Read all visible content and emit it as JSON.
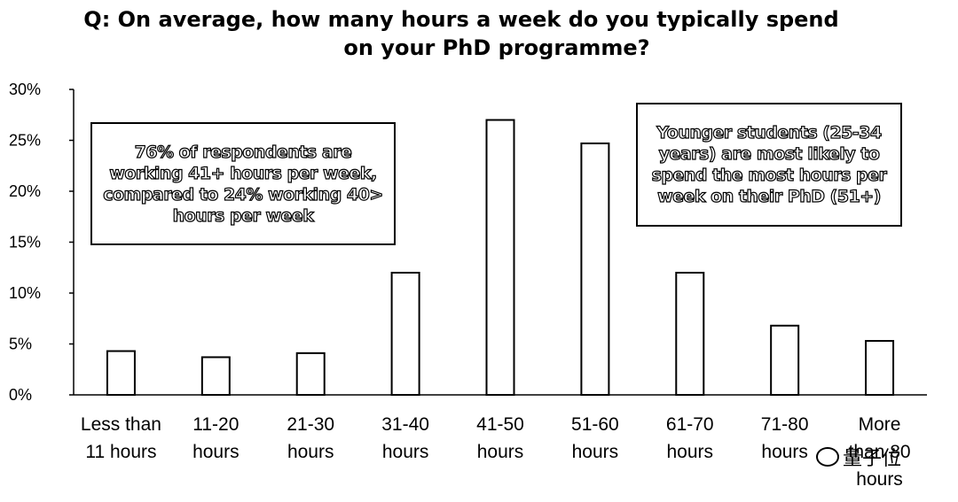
{
  "chart_data": {
    "type": "bar",
    "title": "Q: On average, how many hours a week do you typically spend on your PhD programme?",
    "title_lines": [
      "Q: On average, how many hours a week do you typically spend",
      "on your PhD programme?"
    ],
    "categories": [
      [
        "Less than",
        "11 hours"
      ],
      [
        "11-20",
        "hours"
      ],
      [
        "21-30",
        "hours"
      ],
      [
        "31-40",
        "hours"
      ],
      [
        "41-50",
        "hours"
      ],
      [
        "51-60",
        "hours"
      ],
      [
        "61-70",
        "hours"
      ],
      [
        "71-80",
        "hours"
      ],
      [
        "More",
        "than 80",
        "hours"
      ]
    ],
    "values": [
      4.3,
      3.7,
      4.1,
      12.0,
      27.0,
      24.7,
      12.0,
      6.8,
      5.3
    ],
    "ylim": [
      0,
      30
    ],
    "yticks": [
      0,
      5,
      10,
      15,
      20,
      25,
      30
    ],
    "ytick_labels": [
      "0%",
      "5%",
      "10%",
      "15%",
      "20%",
      "25%",
      "30%"
    ],
    "xlabel": "",
    "ylabel": "",
    "bar_fill": "#ffffff",
    "bar_stroke": "#000000",
    "grid": false,
    "annotations": [
      {
        "id": "left",
        "text": "76% of respondents are working 41+ hours per week, compared to 24% working 40> hours per week"
      },
      {
        "id": "right",
        "text": "Younger students (25-34 years) are most likely to spend the most hours per week on their PhD (51+)"
      }
    ]
  },
  "watermark": {
    "text": "量子位",
    "icon": "wechat-icon"
  }
}
